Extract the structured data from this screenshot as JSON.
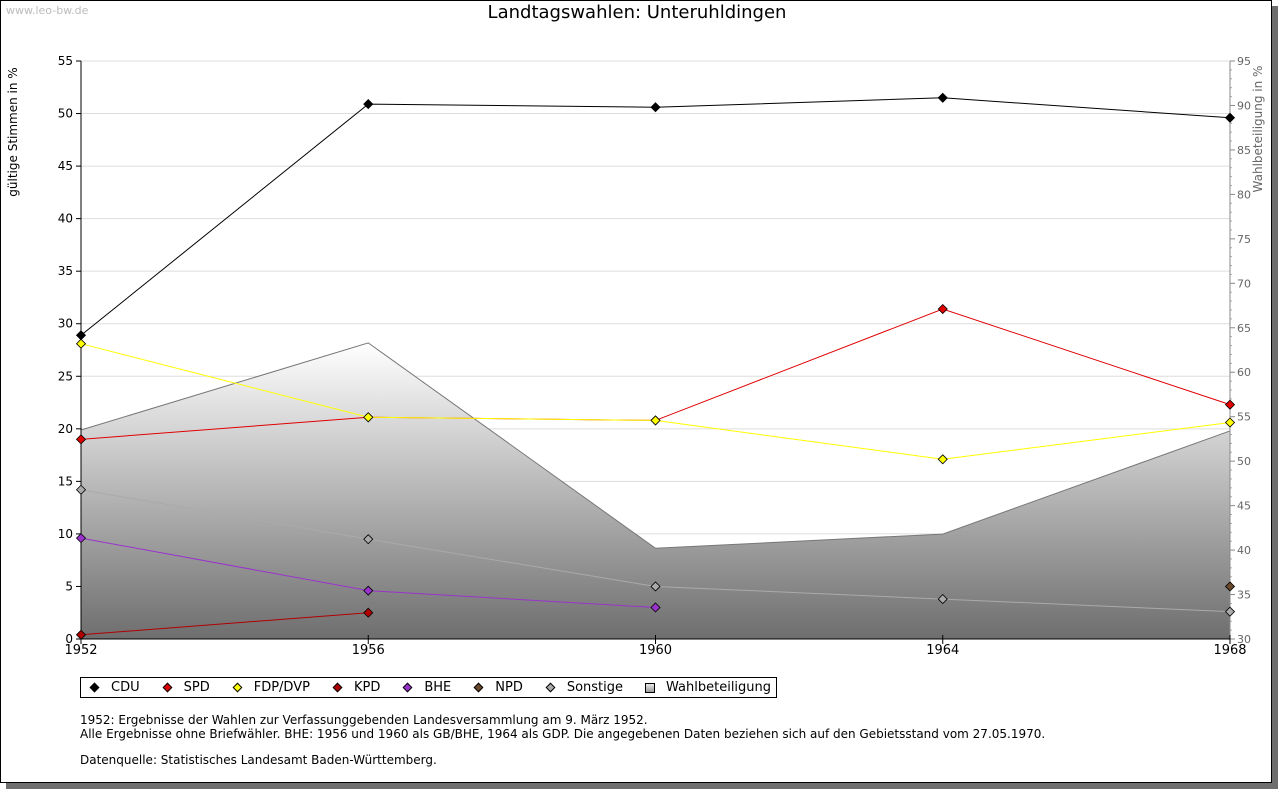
{
  "watermark": "www.leo-bw.de",
  "chart_data": {
    "type": "line",
    "title": "Landtagswahlen: Unteruhldingen",
    "ylabel": "gültige Stimmen in %",
    "y2label": "Wahlbeteiligung in %",
    "x": [
      1952,
      1956,
      1960,
      1964,
      1968
    ],
    "x_ticks": [
      "1952",
      "1956",
      "1960",
      "1964",
      "1968"
    ],
    "ylim": [
      0,
      55
    ],
    "yticks": [
      0,
      5,
      10,
      15,
      20,
      25,
      30,
      35,
      40,
      45,
      50,
      55
    ],
    "y2lim": [
      30,
      95
    ],
    "y2ticks": [
      30,
      35,
      40,
      45,
      50,
      55,
      60,
      65,
      70,
      75,
      80,
      85,
      90,
      95
    ],
    "grid": true,
    "series": [
      {
        "name": "CDU",
        "color": "#000000",
        "values": [
          28.9,
          50.9,
          50.6,
          51.5,
          49.6
        ]
      },
      {
        "name": "SPD",
        "color": "#e00000",
        "values": [
          19.0,
          21.1,
          20.8,
          31.4,
          22.3
        ]
      },
      {
        "name": "FDP/DVP",
        "color": "#ffff00",
        "values": [
          28.1,
          21.1,
          20.8,
          17.1,
          20.6
        ]
      },
      {
        "name": "KPD",
        "color": "#b00000",
        "values": [
          0.4,
          2.5,
          null,
          null,
          null
        ]
      },
      {
        "name": "BHE",
        "color": "#9933cc",
        "values": [
          9.6,
          4.6,
          3.0,
          null,
          null
        ]
      },
      {
        "name": "NPD",
        "color": "#6b4a2b",
        "values": [
          null,
          null,
          null,
          null,
          5.0
        ]
      },
      {
        "name": "Sonstige",
        "color": "#aaaaaa",
        "values": [
          14.2,
          9.5,
          5.0,
          3.8,
          2.6
        ]
      }
    ],
    "area": {
      "name": "Wahlbeteiligung",
      "axis": "y2",
      "values": [
        53.5,
        63.3,
        40.2,
        41.8,
        53.4
      ]
    }
  },
  "legend": [
    {
      "label": "CDU",
      "color": "#000000",
      "shape": "diamond"
    },
    {
      "label": "SPD",
      "color": "#e00000",
      "shape": "diamond"
    },
    {
      "label": "FDP/DVP",
      "color": "#ffff00",
      "shape": "diamond"
    },
    {
      "label": "KPD",
      "color": "#b00000",
      "shape": "diamond"
    },
    {
      "label": "BHE",
      "color": "#9933cc",
      "shape": "diamond"
    },
    {
      "label": "NPD",
      "color": "#6b4a2b",
      "shape": "diamond"
    },
    {
      "label": "Sonstige",
      "color": "#aaaaaa",
      "shape": "diamond"
    },
    {
      "label": "Wahlbeteiligung",
      "color": "#bbbbbb",
      "shape": "square"
    }
  ],
  "notes": {
    "line1": "1952: Ergebnisse der Wahlen zur Verfassunggebenden Landesversammlung am 9. März 1952.",
    "line2": "Alle Ergebnisse ohne Briefwähler. BHE: 1956 und 1960 als GB/BHE, 1964 als GDP. Die angegebenen Daten beziehen sich auf den Gebietsstand vom 27.05.1970.",
    "line3": "Datenquelle: Statistisches Landesamt Baden-Württemberg."
  }
}
